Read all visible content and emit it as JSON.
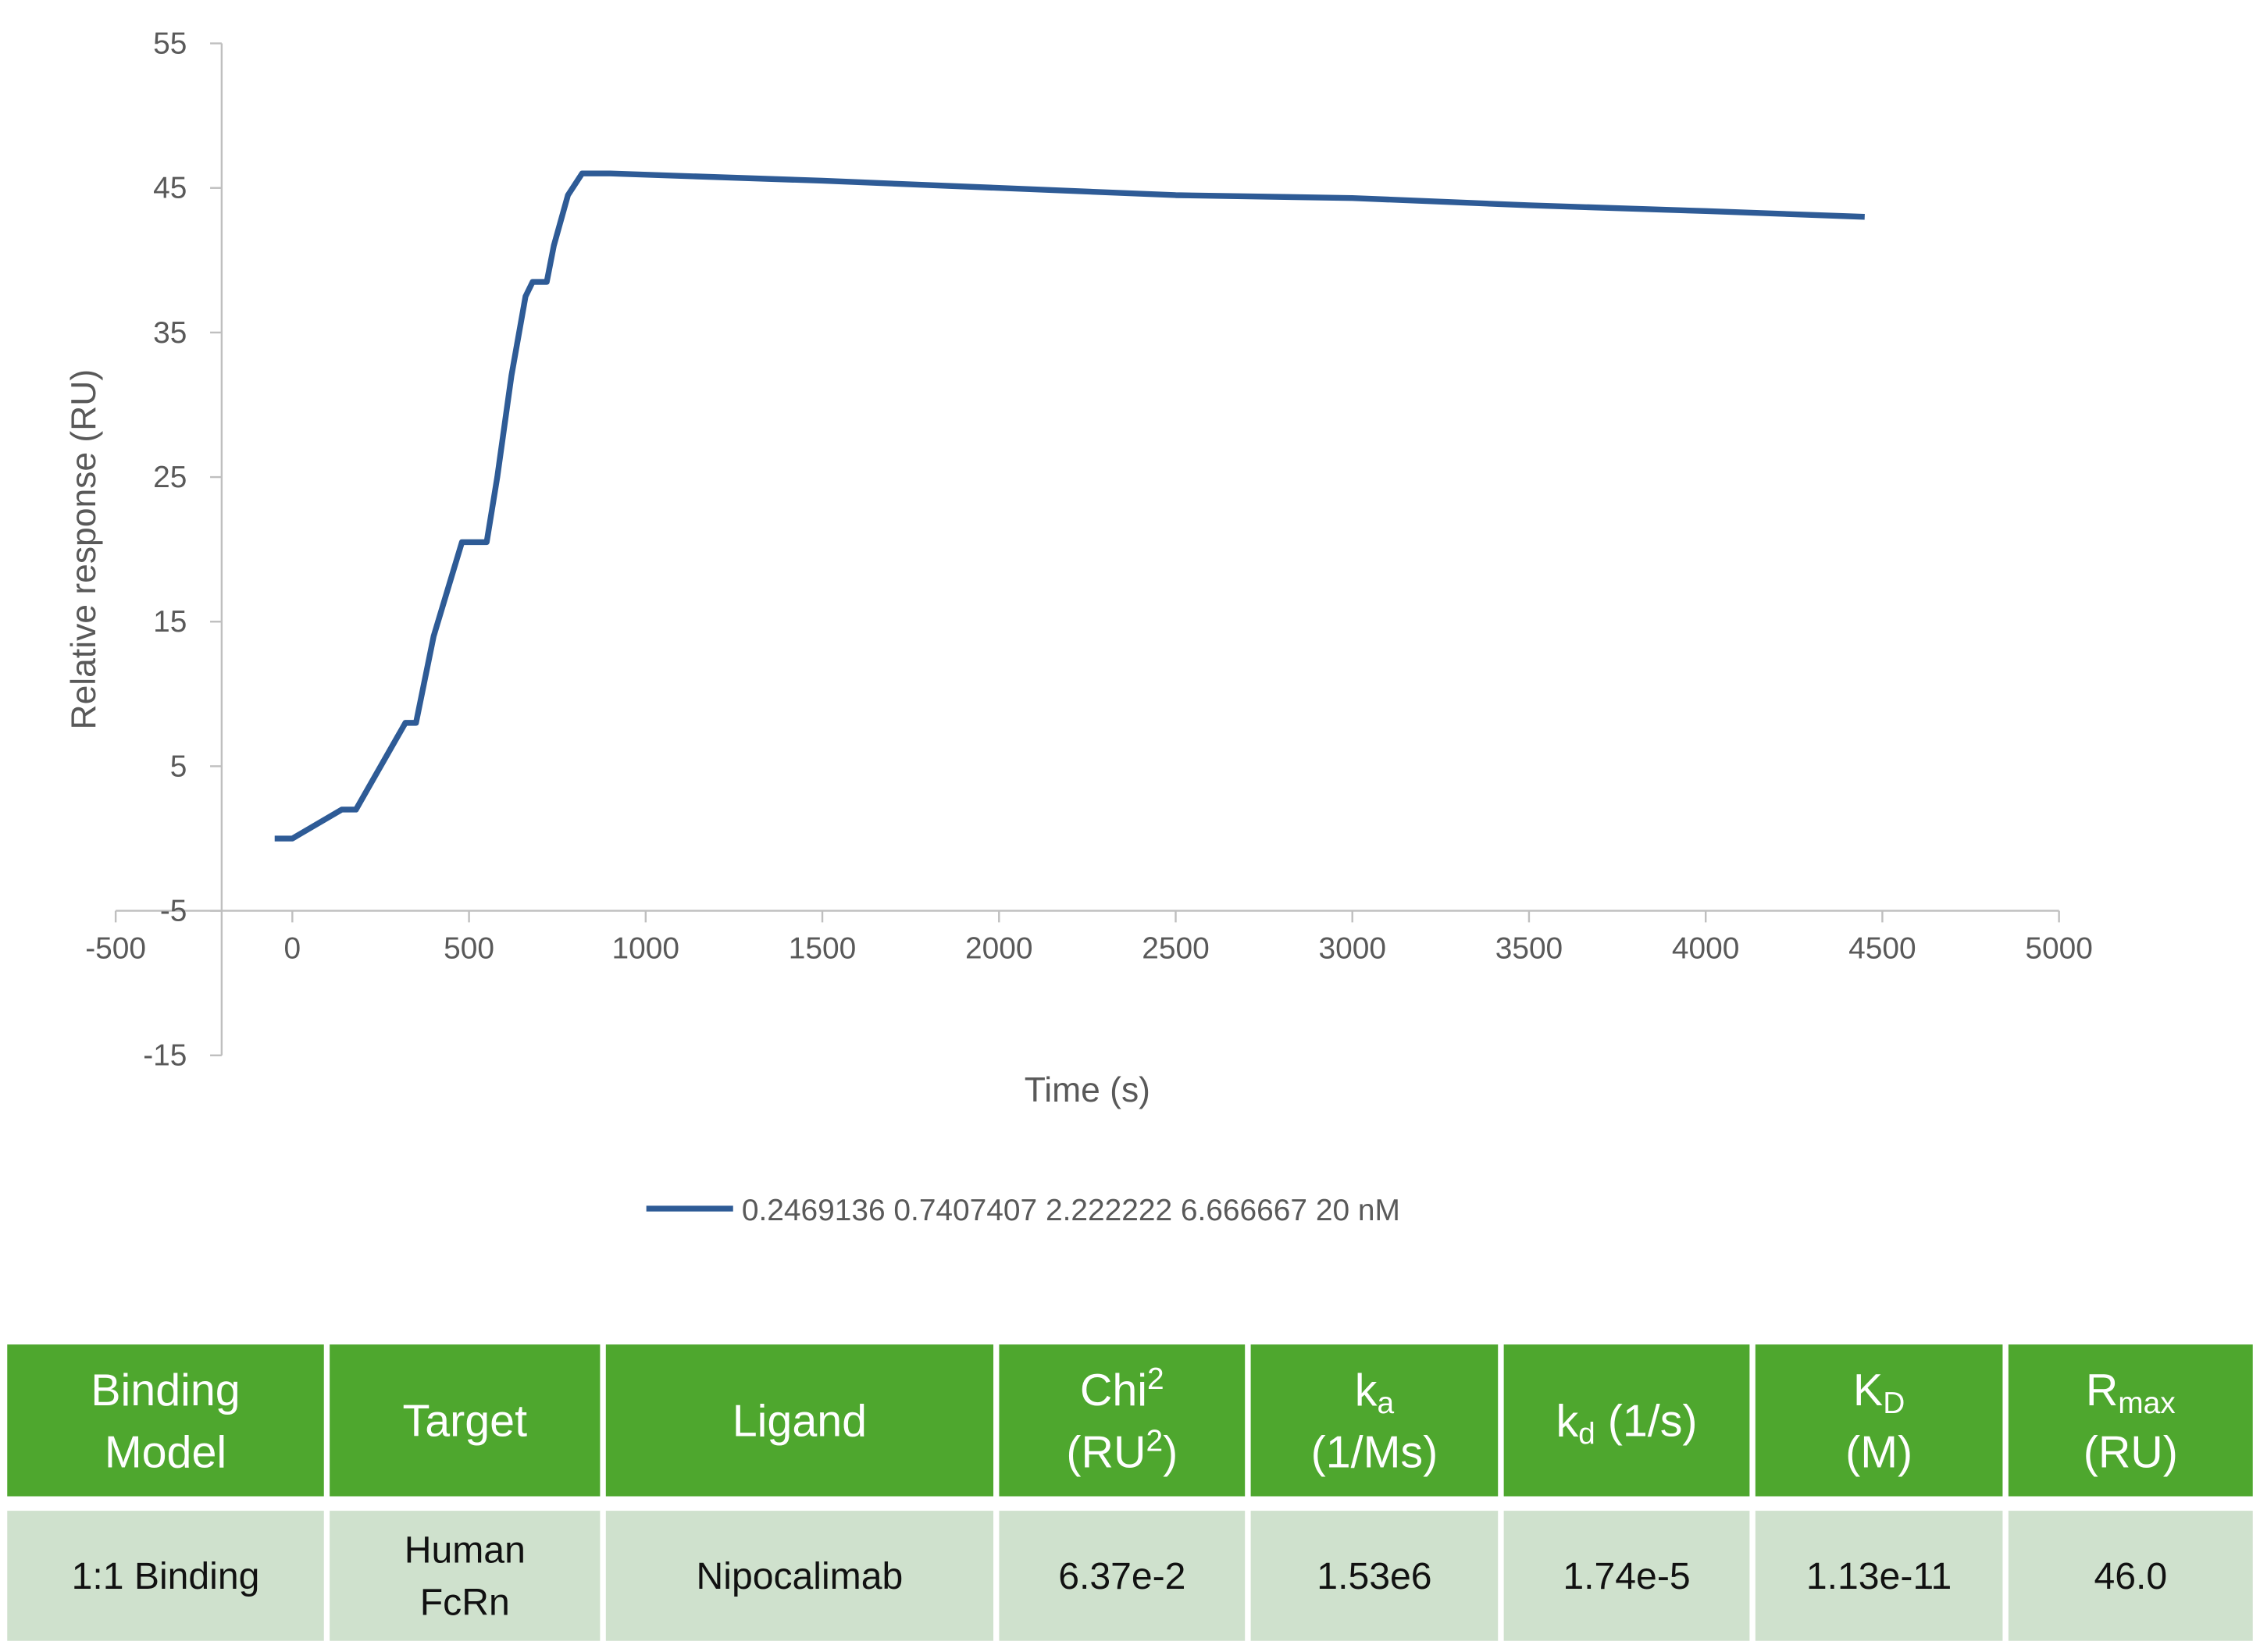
{
  "chart_data": {
    "type": "line",
    "xlabel": "Time (s)",
    "ylabel": "Relative response (RU)",
    "x": [
      -50,
      0,
      140,
      180,
      320,
      350,
      400,
      480,
      550,
      580,
      620,
      660,
      680,
      720,
      740,
      780,
      820,
      900,
      1500,
      2000,
      2500,
      3000,
      3500,
      4000,
      4450
    ],
    "series": [
      {
        "name": "0.2469136 0.7407407 2.222222 6.666667 20 nM",
        "color": "#2e5b96",
        "values": [
          0,
          0,
          2,
          2,
          8,
          8,
          14,
          20.5,
          20.5,
          25,
          32,
          37.5,
          38.5,
          38.5,
          41,
          44.5,
          46,
          46,
          45.5,
          45,
          44.5,
          44.3,
          43.8,
          43.4,
          43
        ]
      }
    ],
    "xlim": [
      -500,
      5000
    ],
    "xticks": [
      -500,
      0,
      500,
      1000,
      1500,
      2000,
      2500,
      3000,
      3500,
      4000,
      4500,
      5000
    ],
    "ylim": [
      -15,
      55
    ],
    "yticks": [
      -15,
      -5,
      5,
      15,
      25,
      35,
      45,
      55
    ],
    "x_axis_crossing": -5,
    "y_axis_crossing": -200,
    "grid": false,
    "legend": "bottom"
  },
  "table": {
    "header": [
      [
        [
          {
            "text": "Binding"
          }
        ],
        [
          {
            "text": "Model"
          }
        ]
      ],
      [
        [
          {
            "text": "Target"
          }
        ]
      ],
      [
        [
          {
            "text": "Ligand"
          }
        ]
      ],
      [
        [
          {
            "text": "Chi"
          },
          {
            "sup": "2"
          }
        ],
        [
          {
            "text": "(RU"
          },
          {
            "sup": "2"
          },
          {
            "text": ")"
          }
        ]
      ],
      [
        [
          {
            "text": "k"
          },
          {
            "sub": "a"
          }
        ],
        [
          {
            "text": "(1/Ms)"
          }
        ]
      ],
      [
        [
          {
            "text": "k"
          },
          {
            "sub": "d"
          },
          {
            "text": " (1/s)"
          }
        ]
      ],
      [
        [
          {
            "text": "K"
          },
          {
            "sub": "D"
          }
        ],
        [
          {
            "text": "(M)"
          }
        ]
      ],
      [
        [
          {
            "text": "R"
          },
          {
            "sub": "max"
          }
        ],
        [
          {
            "text": "(RU)"
          }
        ]
      ]
    ],
    "rows": [
      [
        [
          "1:1 Binding"
        ],
        [
          "Human",
          "FcRn"
        ],
        [
          "Nipocalimab"
        ],
        [
          "6.37e-2"
        ],
        [
          "1.53e6"
        ],
        [
          "1.74e-5"
        ],
        [
          "1.13e-11"
        ],
        [
          "46.0"
        ]
      ]
    ]
  }
}
